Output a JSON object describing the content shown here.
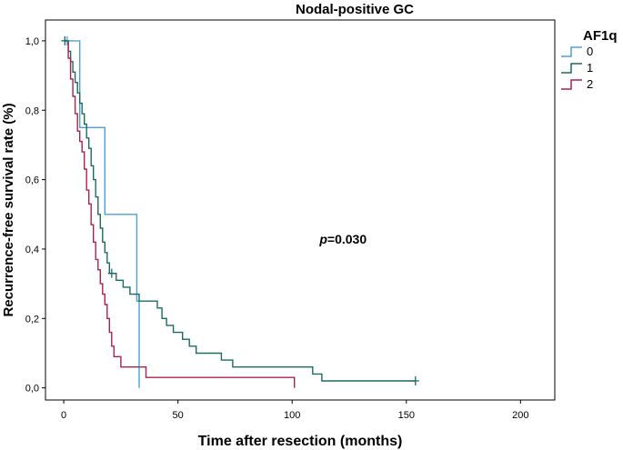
{
  "chart_data": {
    "type": "line",
    "subtype": "kaplan-meier-step",
    "title": "Nodal-positive GC",
    "xlabel": "Time after resection (months)",
    "ylabel": "Recurrence-free survival rate (%)",
    "xlim": [
      -8,
      215
    ],
    "ylim": [
      -0.035,
      1.06
    ],
    "xticks": [
      0,
      50,
      100,
      150,
      200
    ],
    "xtick_labels": [
      "0",
      "50",
      "100",
      "150",
      "200"
    ],
    "yticks": [
      0.0,
      0.2,
      0.4,
      0.6,
      0.8,
      1.0
    ],
    "ytick_labels": [
      "0,0",
      "0,2",
      "0,4",
      "0,6",
      "0,8",
      "1,0"
    ],
    "grid": false,
    "legend": {
      "title": "AF1q",
      "position": "top-right"
    },
    "annotation": {
      "italic": "p",
      "text": "=0.030",
      "x": 112,
      "y": 0.415
    },
    "series": [
      {
        "name": "0",
        "color": "#4aa3d4",
        "points": [
          [
            0,
            1.0
          ],
          [
            7,
            1.0
          ],
          [
            7,
            0.75
          ],
          [
            18,
            0.75
          ],
          [
            18,
            0.5
          ],
          [
            32,
            0.5
          ],
          [
            32,
            0.25
          ],
          [
            33,
            0.25
          ],
          [
            33,
            0.0
          ]
        ],
        "censored": [
          [
            1.5,
            1.0
          ]
        ]
      },
      {
        "name": "1",
        "color": "#1c6b62",
        "points": [
          [
            0,
            1.0
          ],
          [
            2,
            1.0
          ],
          [
            2,
            0.97
          ],
          [
            3,
            0.97
          ],
          [
            3,
            0.94
          ],
          [
            4,
            0.94
          ],
          [
            4,
            0.91
          ],
          [
            5,
            0.91
          ],
          [
            5,
            0.88
          ],
          [
            6,
            0.88
          ],
          [
            6,
            0.85
          ],
          [
            7,
            0.85
          ],
          [
            7,
            0.82
          ],
          [
            8,
            0.82
          ],
          [
            8,
            0.79
          ],
          [
            9,
            0.79
          ],
          [
            9,
            0.76
          ],
          [
            10,
            0.76
          ],
          [
            10,
            0.72
          ],
          [
            11,
            0.72
          ],
          [
            11,
            0.69
          ],
          [
            12,
            0.69
          ],
          [
            12,
            0.64
          ],
          [
            13,
            0.64
          ],
          [
            13,
            0.6
          ],
          [
            14,
            0.6
          ],
          [
            14,
            0.55
          ],
          [
            15,
            0.55
          ],
          [
            15,
            0.5
          ],
          [
            16,
            0.5
          ],
          [
            16,
            0.46
          ],
          [
            17,
            0.46
          ],
          [
            17,
            0.42
          ],
          [
            18,
            0.42
          ],
          [
            18,
            0.39
          ],
          [
            19,
            0.39
          ],
          [
            19,
            0.36
          ],
          [
            20,
            0.36
          ],
          [
            20,
            0.33
          ],
          [
            23,
            0.33
          ],
          [
            23,
            0.31
          ],
          [
            26,
            0.31
          ],
          [
            26,
            0.29
          ],
          [
            29,
            0.29
          ],
          [
            29,
            0.27
          ],
          [
            33,
            0.27
          ],
          [
            33,
            0.25
          ],
          [
            41,
            0.25
          ],
          [
            41,
            0.23
          ],
          [
            43,
            0.23
          ],
          [
            43,
            0.2
          ],
          [
            45,
            0.2
          ],
          [
            45,
            0.18
          ],
          [
            48,
            0.18
          ],
          [
            48,
            0.16
          ],
          [
            52,
            0.16
          ],
          [
            52,
            0.14
          ],
          [
            55,
            0.14
          ],
          [
            55,
            0.12
          ],
          [
            58,
            0.12
          ],
          [
            58,
            0.1
          ],
          [
            69,
            0.1
          ],
          [
            69,
            0.08
          ],
          [
            74,
            0.08
          ],
          [
            74,
            0.06
          ],
          [
            109,
            0.06
          ],
          [
            109,
            0.04
          ],
          [
            113,
            0.04
          ],
          [
            113,
            0.02
          ],
          [
            154,
            0.02
          ]
        ],
        "censored": [
          [
            0.5,
            1.0
          ],
          [
            21,
            0.33
          ],
          [
            154,
            0.02
          ]
        ]
      },
      {
        "name": "2",
        "color": "#a8244a",
        "points": [
          [
            0,
            1.0
          ],
          [
            2,
            1.0
          ],
          [
            2,
            0.95
          ],
          [
            3,
            0.95
          ],
          [
            3,
            0.89
          ],
          [
            4,
            0.89
          ],
          [
            4,
            0.84
          ],
          [
            5,
            0.84
          ],
          [
            5,
            0.79
          ],
          [
            6,
            0.79
          ],
          [
            6,
            0.74
          ],
          [
            7,
            0.74
          ],
          [
            7,
            0.71
          ],
          [
            8,
            0.71
          ],
          [
            8,
            0.68
          ],
          [
            9,
            0.68
          ],
          [
            9,
            0.63
          ],
          [
            10,
            0.63
          ],
          [
            10,
            0.57
          ],
          [
            11,
            0.57
          ],
          [
            11,
            0.53
          ],
          [
            12,
            0.53
          ],
          [
            12,
            0.47
          ],
          [
            13,
            0.47
          ],
          [
            13,
            0.42
          ],
          [
            14,
            0.42
          ],
          [
            14,
            0.37
          ],
          [
            15,
            0.37
          ],
          [
            15,
            0.34
          ],
          [
            16,
            0.34
          ],
          [
            16,
            0.3
          ],
          [
            17,
            0.3
          ],
          [
            17,
            0.27
          ],
          [
            18,
            0.27
          ],
          [
            18,
            0.24
          ],
          [
            19,
            0.24
          ],
          [
            19,
            0.2
          ],
          [
            20,
            0.2
          ],
          [
            20,
            0.16
          ],
          [
            21,
            0.16
          ],
          [
            21,
            0.12
          ],
          [
            22,
            0.12
          ],
          [
            22,
            0.09
          ],
          [
            25,
            0.09
          ],
          [
            25,
            0.06
          ],
          [
            36,
            0.06
          ],
          [
            36,
            0.03
          ],
          [
            101,
            0.03
          ],
          [
            101,
            0.0
          ]
        ],
        "censored": []
      }
    ]
  }
}
